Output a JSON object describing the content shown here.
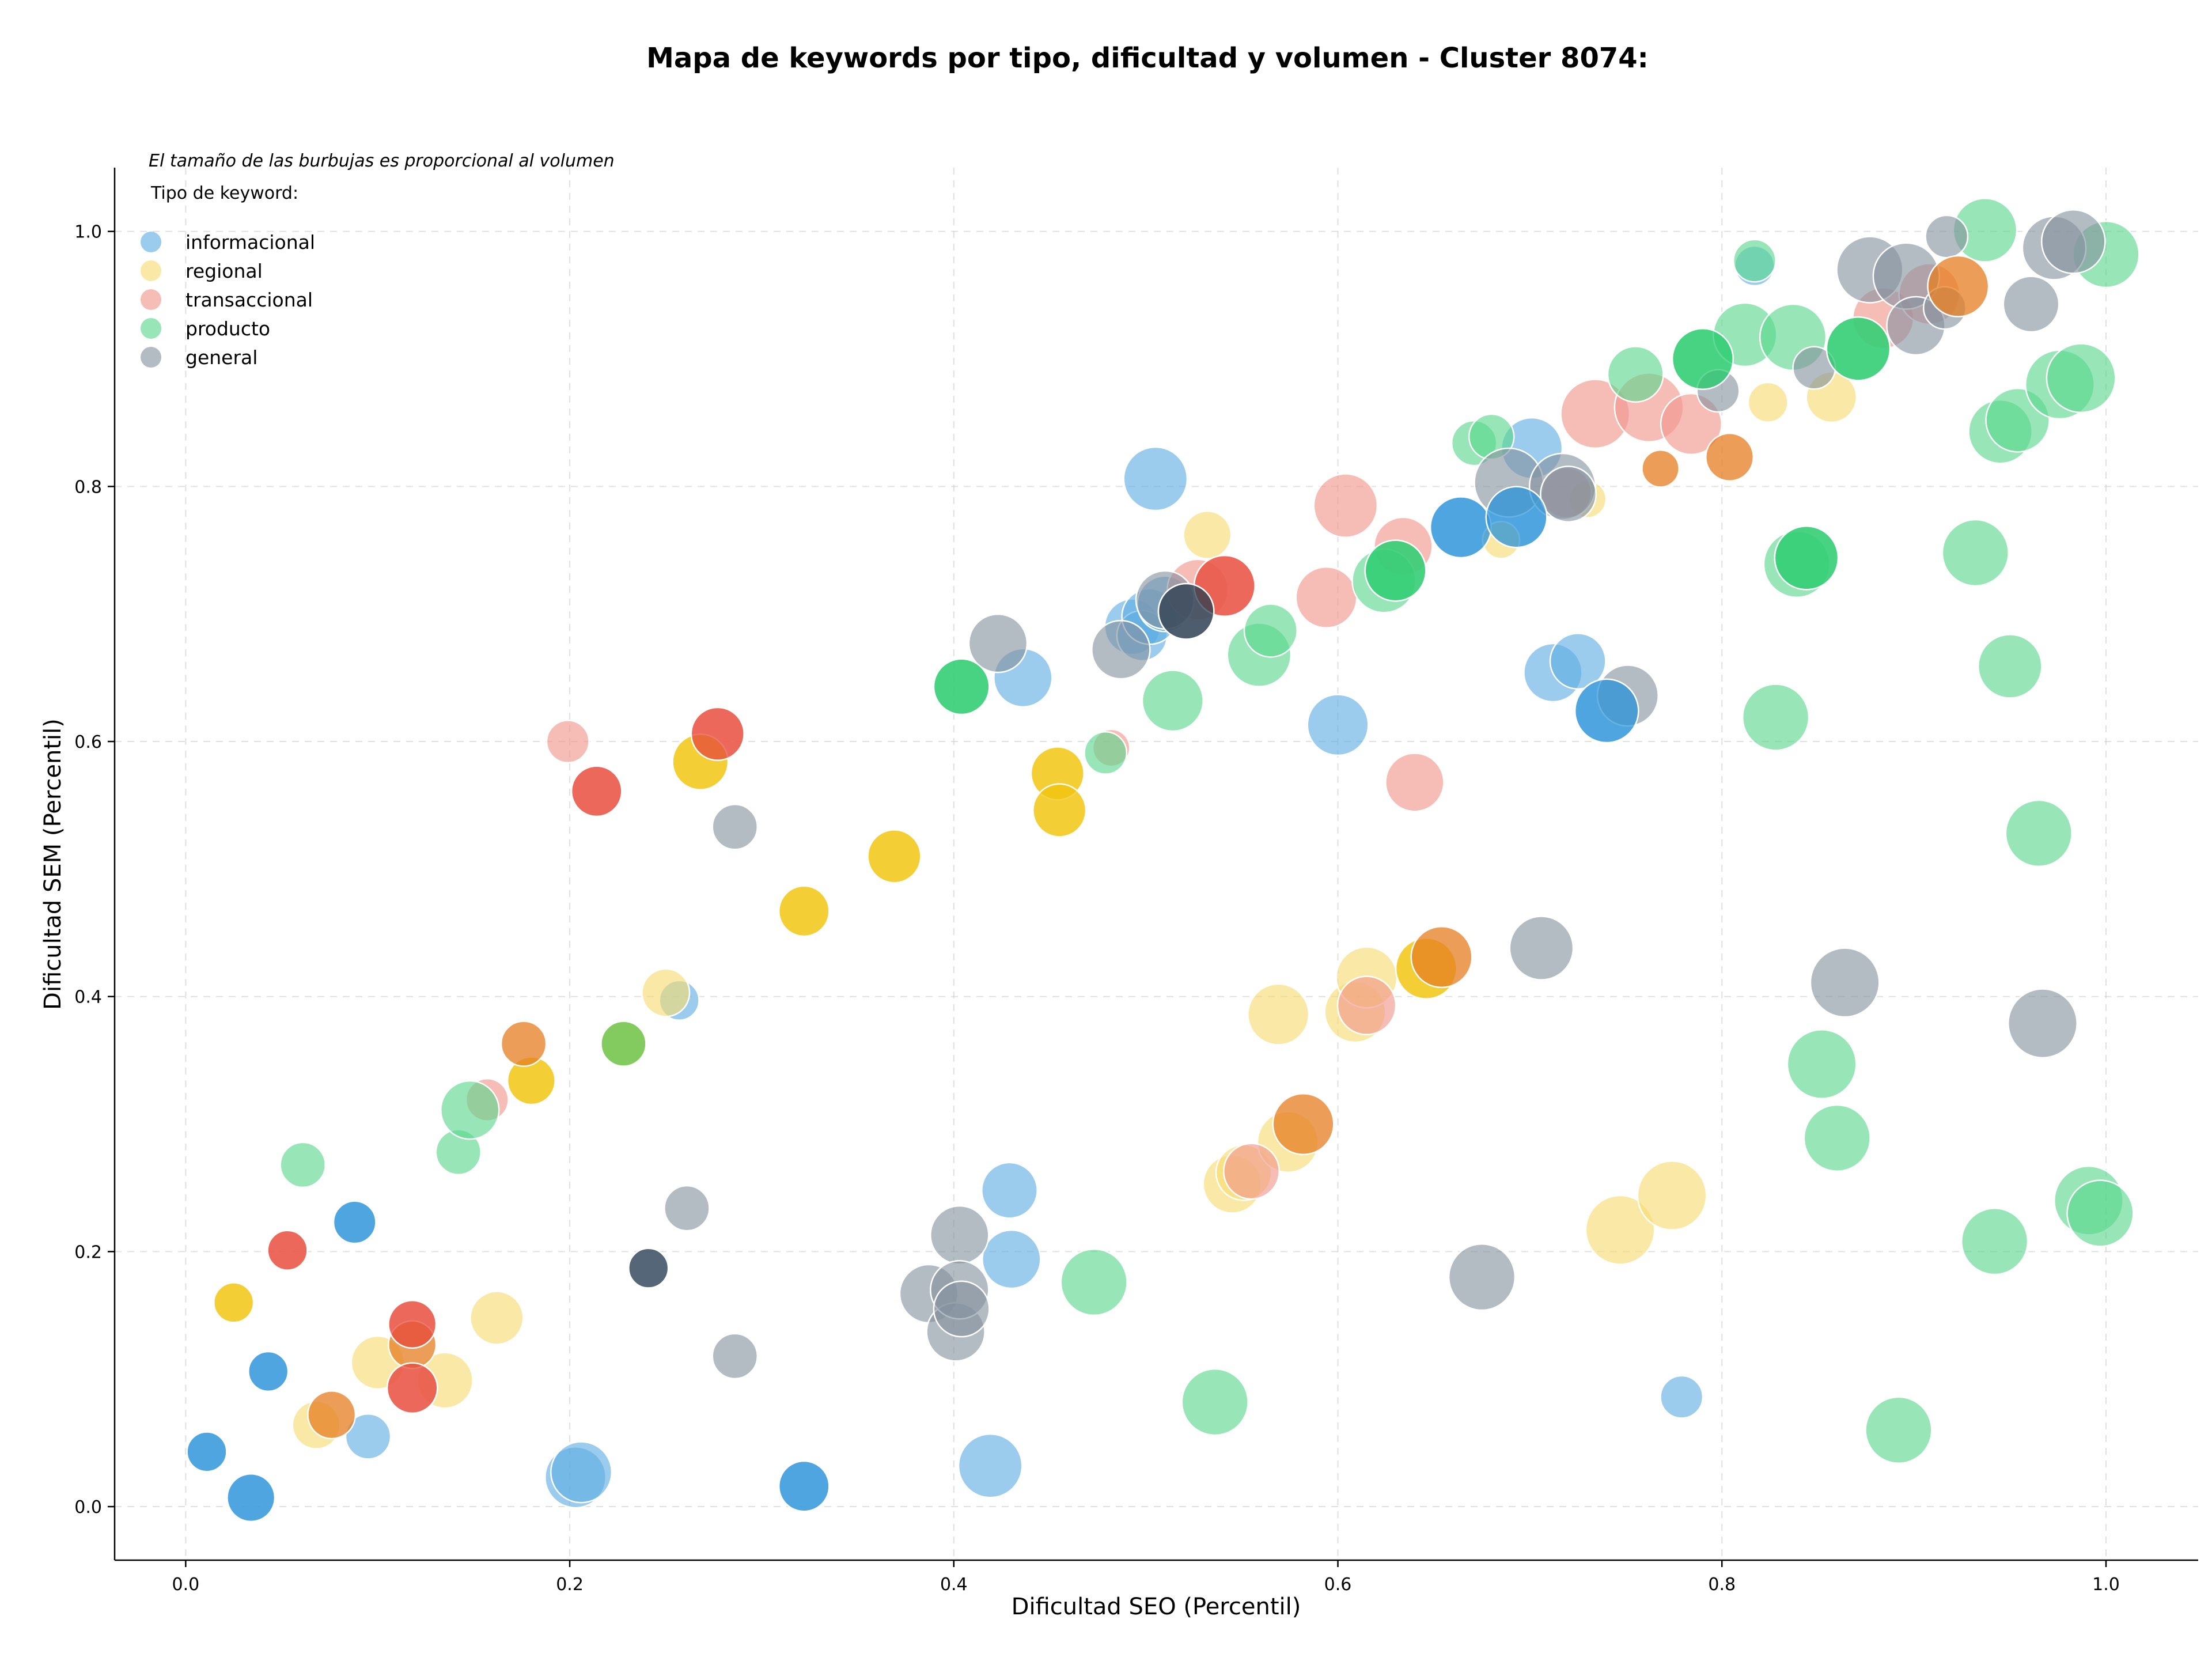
{
  "chart_data": {
    "type": "scatter",
    "title": "Mapa de keywords por tipo, dificultad y volumen - Cluster 8074:",
    "xlabel": "Dificultad SEO (Percentil)",
    "ylabel": "Dificultad SEM (Percentil)",
    "note": "El tamaño de las burbujas es proporcional al volumen",
    "legend_title": "Tipo de keyword:",
    "legend_position": "top-left",
    "grid": true,
    "xlim": [
      -0.037,
      1.048
    ],
    "ylim": [
      -0.042,
      1.05
    ],
    "xticks": [
      0.0,
      0.2,
      0.4,
      0.6,
      0.8,
      1.0
    ],
    "yticks": [
      0.0,
      0.2,
      0.4,
      0.6,
      0.8,
      1.0
    ],
    "xtick_labels": [
      "0.0",
      "0.2",
      "0.4",
      "0.6",
      "0.8",
      "1.0"
    ],
    "ytick_labels": [
      "0.0",
      "0.2",
      "0.4",
      "0.6",
      "0.8",
      "1.0"
    ],
    "series": [
      {
        "name": "informacional",
        "color": "#5dade2",
        "points": [
          {
            "x": 0.011,
            "y": 0.043,
            "s": 0.4
          },
          {
            "x": 0.034,
            "y": 0.007,
            "s": 0.55
          },
          {
            "x": 0.043,
            "y": 0.106,
            "s": 0.4
          },
          {
            "x": 0.088,
            "y": 0.223,
            "s": 0.45
          },
          {
            "x": 0.095,
            "y": 0.055,
            "s": 0.5
          },
          {
            "x": 0.203,
            "y": 0.023,
            "s": 0.8
          },
          {
            "x": 0.206,
            "y": 0.027,
            "s": 0.8
          },
          {
            "x": 0.257,
            "y": 0.397,
            "s": 0.4
          },
          {
            "x": 0.322,
            "y": 0.016,
            "s": 0.6
          },
          {
            "x": 0.419,
            "y": 0.032,
            "s": 0.85
          },
          {
            "x": 0.429,
            "y": 0.248,
            "s": 0.7
          },
          {
            "x": 0.43,
            "y": 0.194,
            "s": 0.75
          },
          {
            "x": 0.436,
            "y": 0.65,
            "s": 0.75
          },
          {
            "x": 0.493,
            "y": 0.69,
            "s": 0.7
          },
          {
            "x": 0.498,
            "y": 0.683,
            "s": 0.6
          },
          {
            "x": 0.502,
            "y": 0.698,
            "s": 0.7
          },
          {
            "x": 0.505,
            "y": 0.806,
            "s": 0.85
          },
          {
            "x": 0.51,
            "y": 0.708,
            "s": 0.7
          },
          {
            "x": 0.6,
            "y": 0.613,
            "s": 0.8
          },
          {
            "x": 0.664,
            "y": 0.768,
            "s": 0.8
          },
          {
            "x": 0.693,
            "y": 0.776,
            "s": 0.8
          },
          {
            "x": 0.701,
            "y": 0.83,
            "s": 0.8
          },
          {
            "x": 0.712,
            "y": 0.654,
            "s": 0.75
          },
          {
            "x": 0.725,
            "y": 0.663,
            "s": 0.7
          },
          {
            "x": 0.74,
            "y": 0.624,
            "s": 0.85
          },
          {
            "x": 0.779,
            "y": 0.086,
            "s": 0.45
          },
          {
            "x": 0.817,
            "y": 0.973,
            "s": 0.4
          }
        ]
      },
      {
        "name": "regional",
        "color": "#f7dc6f",
        "points": [
          {
            "x": 0.025,
            "y": 0.16,
            "s": 0.4
          },
          {
            "x": 0.068,
            "y": 0.064,
            "s": 0.55
          },
          {
            "x": 0.1,
            "y": 0.113,
            "s": 0.65
          },
          {
            "x": 0.135,
            "y": 0.099,
            "s": 0.7
          },
          {
            "x": 0.162,
            "y": 0.148,
            "s": 0.65
          },
          {
            "x": 0.18,
            "y": 0.334,
            "s": 0.55
          },
          {
            "x": 0.25,
            "y": 0.403,
            "s": 0.55
          },
          {
            "x": 0.268,
            "y": 0.584,
            "s": 0.7
          },
          {
            "x": 0.322,
            "y": 0.467,
            "s": 0.6
          },
          {
            "x": 0.369,
            "y": 0.51,
            "s": 0.65
          },
          {
            "x": 0.454,
            "y": 0.575,
            "s": 0.65
          },
          {
            "x": 0.455,
            "y": 0.546,
            "s": 0.65
          },
          {
            "x": 0.532,
            "y": 0.762,
            "s": 0.55
          },
          {
            "x": 0.545,
            "y": 0.253,
            "s": 0.75
          },
          {
            "x": 0.551,
            "y": 0.262,
            "s": 0.7
          },
          {
            "x": 0.569,
            "y": 0.386,
            "s": 0.8
          },
          {
            "x": 0.574,
            "y": 0.286,
            "s": 0.8
          },
          {
            "x": 0.609,
            "y": 0.388,
            "s": 0.8
          },
          {
            "x": 0.615,
            "y": 0.415,
            "s": 0.8
          },
          {
            "x": 0.646,
            "y": 0.422,
            "s": 0.8
          },
          {
            "x": 0.685,
            "y": 0.758,
            "s": 0.35
          },
          {
            "x": 0.73,
            "y": 0.79,
            "s": 0.35
          },
          {
            "x": 0.747,
            "y": 0.217,
            "s": 0.95
          },
          {
            "x": 0.774,
            "y": 0.244,
            "s": 0.95
          },
          {
            "x": 0.824,
            "y": 0.866,
            "s": 0.4
          },
          {
            "x": 0.857,
            "y": 0.87,
            "s": 0.6
          }
        ]
      },
      {
        "name": "transaccional",
        "color": "#f1948a",
        "points": [
          {
            "x": 0.053,
            "y": 0.201,
            "s": 0.4
          },
          {
            "x": 0.118,
            "y": 0.143,
            "s": 0.55
          },
          {
            "x": 0.118,
            "y": 0.093,
            "s": 0.6
          },
          {
            "x": 0.157,
            "y": 0.319,
            "s": 0.45
          },
          {
            "x": 0.199,
            "y": 0.6,
            "s": 0.45
          },
          {
            "x": 0.214,
            "y": 0.561,
            "s": 0.6
          },
          {
            "x": 0.277,
            "y": 0.606,
            "s": 0.65
          },
          {
            "x": 0.482,
            "y": 0.595,
            "s": 0.35
          },
          {
            "x": 0.527,
            "y": 0.719,
            "s": 0.8
          },
          {
            "x": 0.541,
            "y": 0.722,
            "s": 0.8
          },
          {
            "x": 0.555,
            "y": 0.263,
            "s": 0.7
          },
          {
            "x": 0.594,
            "y": 0.713,
            "s": 0.8
          },
          {
            "x": 0.604,
            "y": 0.785,
            "s": 0.85
          },
          {
            "x": 0.615,
            "y": 0.393,
            "s": 0.75
          },
          {
            "x": 0.634,
            "y": 0.753,
            "s": 0.75
          },
          {
            "x": 0.64,
            "y": 0.568,
            "s": 0.75
          },
          {
            "x": 0.719,
            "y": 0.795,
            "s": 0.6
          },
          {
            "x": 0.734,
            "y": 0.857,
            "s": 0.95
          },
          {
            "x": 0.762,
            "y": 0.862,
            "s": 0.95
          },
          {
            "x": 0.784,
            "y": 0.849,
            "s": 0.8
          },
          {
            "x": 0.884,
            "y": 0.932,
            "s": 0.8
          },
          {
            "x": 0.908,
            "y": 0.951,
            "s": 0.8
          }
        ]
      },
      {
        "name": "producto",
        "color": "#58d68d",
        "points": [
          {
            "x": 0.061,
            "y": 0.268,
            "s": 0.5
          },
          {
            "x": 0.142,
            "y": 0.278,
            "s": 0.5
          },
          {
            "x": 0.148,
            "y": 0.311,
            "s": 0.75
          },
          {
            "x": 0.228,
            "y": 0.363,
            "s": 0.5
          },
          {
            "x": 0.404,
            "y": 0.643,
            "s": 0.7
          },
          {
            "x": 0.473,
            "y": 0.176,
            "s": 0.9
          },
          {
            "x": 0.479,
            "y": 0.591,
            "s": 0.45
          },
          {
            "x": 0.514,
            "y": 0.632,
            "s": 0.8
          },
          {
            "x": 0.536,
            "y": 0.082,
            "s": 0.9
          },
          {
            "x": 0.559,
            "y": 0.668,
            "s": 0.85
          },
          {
            "x": 0.565,
            "y": 0.687,
            "s": 0.65
          },
          {
            "x": 0.624,
            "y": 0.726,
            "s": 0.85
          },
          {
            "x": 0.63,
            "y": 0.734,
            "s": 0.8
          },
          {
            "x": 0.671,
            "y": 0.834,
            "s": 0.5
          },
          {
            "x": 0.68,
            "y": 0.839,
            "s": 0.5
          },
          {
            "x": 0.755,
            "y": 0.888,
            "s": 0.7
          },
          {
            "x": 0.79,
            "y": 0.9,
            "s": 0.8
          },
          {
            "x": 0.812,
            "y": 0.919,
            "s": 0.85
          },
          {
            "x": 0.817,
            "y": 0.977,
            "s": 0.45
          },
          {
            "x": 0.828,
            "y": 0.619,
            "s": 0.9
          },
          {
            "x": 0.837,
            "y": 0.917,
            "s": 0.9
          },
          {
            "x": 0.839,
            "y": 0.739,
            "s": 0.9
          },
          {
            "x": 0.844,
            "y": 0.744,
            "s": 0.85
          },
          {
            "x": 0.852,
            "y": 0.347,
            "s": 0.95
          },
          {
            "x": 0.86,
            "y": 0.289,
            "s": 0.9
          },
          {
            "x": 0.871,
            "y": 0.908,
            "s": 0.85
          },
          {
            "x": 0.892,
            "y": 0.06,
            "s": 0.9
          },
          {
            "x": 0.932,
            "y": 0.748,
            "s": 0.9
          },
          {
            "x": 0.937,
            "y": 1.001,
            "s": 0.85
          },
          {
            "x": 0.942,
            "y": 0.208,
            "s": 0.9
          },
          {
            "x": 0.945,
            "y": 0.843,
            "s": 0.85
          },
          {
            "x": 0.95,
            "y": 0.659,
            "s": 0.85
          },
          {
            "x": 0.954,
            "y": 0.852,
            "s": 0.85
          },
          {
            "x": 0.965,
            "y": 0.528,
            "s": 0.9
          },
          {
            "x": 0.976,
            "y": 0.88,
            "s": 0.95
          },
          {
            "x": 0.987,
            "y": 0.885,
            "s": 0.95
          },
          {
            "x": 0.991,
            "y": 0.24,
            "s": 0.95
          },
          {
            "x": 0.997,
            "y": 0.23,
            "s": 0.9
          },
          {
            "x": 1.0,
            "y": 0.982,
            "s": 0.9
          }
        ]
      },
      {
        "name": "general",
        "color": "#85929e",
        "points": [
          {
            "x": 0.241,
            "y": 0.187,
            "s": 0.4
          },
          {
            "x": 0.261,
            "y": 0.234,
            "s": 0.5
          },
          {
            "x": 0.286,
            "y": 0.533,
            "s": 0.5
          },
          {
            "x": 0.286,
            "y": 0.118,
            "s": 0.5
          },
          {
            "x": 0.387,
            "y": 0.167,
            "s": 0.75
          },
          {
            "x": 0.401,
            "y": 0.137,
            "s": 0.75
          },
          {
            "x": 0.403,
            "y": 0.213,
            "s": 0.75
          },
          {
            "x": 0.403,
            "y": 0.17,
            "s": 0.75
          },
          {
            "x": 0.404,
            "y": 0.155,
            "s": 0.7
          },
          {
            "x": 0.423,
            "y": 0.677,
            "s": 0.75
          },
          {
            "x": 0.487,
            "y": 0.672,
            "s": 0.75
          },
          {
            "x": 0.51,
            "y": 0.711,
            "s": 0.75
          },
          {
            "x": 0.521,
            "y": 0.702,
            "s": 0.7
          },
          {
            "x": 0.675,
            "y": 0.18,
            "s": 0.9
          },
          {
            "x": 0.689,
            "y": 0.803,
            "s": 0.95
          },
          {
            "x": 0.706,
            "y": 0.438,
            "s": 0.85
          },
          {
            "x": 0.717,
            "y": 0.8,
            "s": 0.9
          },
          {
            "x": 0.72,
            "y": 0.794,
            "s": 0.7
          },
          {
            "x": 0.751,
            "y": 0.636,
            "s": 0.8
          },
          {
            "x": 0.798,
            "y": 0.875,
            "s": 0.45
          },
          {
            "x": 0.848,
            "y": 0.893,
            "s": 0.45
          },
          {
            "x": 0.864,
            "y": 0.411,
            "s": 0.95
          },
          {
            "x": 0.877,
            "y": 0.97,
            "s": 0.9
          },
          {
            "x": 0.896,
            "y": 0.965,
            "s": 0.9
          },
          {
            "x": 0.901,
            "y": 0.926,
            "s": 0.75
          },
          {
            "x": 0.916,
            "y": 0.94,
            "s": 0.45
          },
          {
            "x": 0.917,
            "y": 0.996,
            "s": 0.45
          },
          {
            "x": 0.961,
            "y": 0.943,
            "s": 0.7
          },
          {
            "x": 0.967,
            "y": 0.379,
            "s": 0.95
          },
          {
            "x": 0.973,
            "y": 0.987,
            "s": 0.85
          },
          {
            "x": 0.983,
            "y": 0.992,
            "s": 0.85
          }
        ]
      }
    ],
    "overlay_points": [
      {
        "x": 0.011,
        "y": 0.043,
        "s": 0.4,
        "color": "#3498db"
      },
      {
        "x": 0.034,
        "y": 0.007,
        "s": 0.55,
        "color": "#3498db"
      },
      {
        "x": 0.043,
        "y": 0.106,
        "s": 0.4,
        "color": "#3498db"
      },
      {
        "x": 0.088,
        "y": 0.223,
        "s": 0.45,
        "color": "#3498db"
      },
      {
        "x": 0.322,
        "y": 0.016,
        "s": 0.6,
        "color": "#3498db"
      },
      {
        "x": 0.664,
        "y": 0.768,
        "s": 0.8,
        "color": "#3498db"
      },
      {
        "x": 0.693,
        "y": 0.776,
        "s": 0.8,
        "color": "#3498db"
      },
      {
        "x": 0.74,
        "y": 0.624,
        "s": 0.85,
        "color": "#3498db"
      },
      {
        "x": 0.025,
        "y": 0.16,
        "s": 0.4,
        "color": "#f1c40f"
      },
      {
        "x": 0.18,
        "y": 0.334,
        "s": 0.55,
        "color": "#f1c40f"
      },
      {
        "x": 0.268,
        "y": 0.584,
        "s": 0.7,
        "color": "#f1c40f"
      },
      {
        "x": 0.322,
        "y": 0.467,
        "s": 0.6,
        "color": "#f1c40f"
      },
      {
        "x": 0.369,
        "y": 0.51,
        "s": 0.65,
        "color": "#f1c40f"
      },
      {
        "x": 0.454,
        "y": 0.575,
        "s": 0.65,
        "color": "#f1c40f"
      },
      {
        "x": 0.455,
        "y": 0.546,
        "s": 0.65,
        "color": "#f1c40f"
      },
      {
        "x": 0.646,
        "y": 0.422,
        "s": 0.8,
        "color": "#f1c40f"
      },
      {
        "x": 0.076,
        "y": 0.072,
        "s": 0.55,
        "color": "#e67e22"
      },
      {
        "x": 0.118,
        "y": 0.127,
        "s": 0.55,
        "color": "#e67e22"
      },
      {
        "x": 0.176,
        "y": 0.363,
        "s": 0.5,
        "color": "#e67e22"
      },
      {
        "x": 0.582,
        "y": 0.3,
        "s": 0.8,
        "color": "#e67e22"
      },
      {
        "x": 0.654,
        "y": 0.431,
        "s": 0.8,
        "color": "#e67e22"
      },
      {
        "x": 0.768,
        "y": 0.814,
        "s": 0.35,
        "color": "#e67e22"
      },
      {
        "x": 0.804,
        "y": 0.823,
        "s": 0.55,
        "color": "#e67e22"
      },
      {
        "x": 0.923,
        "y": 0.957,
        "s": 0.8,
        "color": "#e67e22"
      },
      {
        "x": 0.053,
        "y": 0.201,
        "s": 0.4,
        "color": "#e74c3c"
      },
      {
        "x": 0.118,
        "y": 0.143,
        "s": 0.55,
        "color": "#e74c3c"
      },
      {
        "x": 0.118,
        "y": 0.093,
        "s": 0.6,
        "color": "#e74c3c"
      },
      {
        "x": 0.214,
        "y": 0.561,
        "s": 0.6,
        "color": "#e74c3c"
      },
      {
        "x": 0.277,
        "y": 0.606,
        "s": 0.65,
        "color": "#e74c3c"
      },
      {
        "x": 0.541,
        "y": 0.722,
        "s": 0.8,
        "color": "#e74c3c"
      },
      {
        "x": 0.404,
        "y": 0.643,
        "s": 0.7,
        "color": "#2ecc71"
      },
      {
        "x": 0.63,
        "y": 0.734,
        "s": 0.8,
        "color": "#2ecc71"
      },
      {
        "x": 0.79,
        "y": 0.9,
        "s": 0.8,
        "color": "#2ecc71"
      },
      {
        "x": 0.871,
        "y": 0.908,
        "s": 0.85,
        "color": "#2ecc71"
      },
      {
        "x": 0.844,
        "y": 0.744,
        "s": 0.85,
        "color": "#2ecc71"
      },
      {
        "x": 0.228,
        "y": 0.363,
        "s": 0.5,
        "color": "#7dc242"
      },
      {
        "x": 0.241,
        "y": 0.187,
        "s": 0.4,
        "color": "#34495e"
      },
      {
        "x": 0.521,
        "y": 0.702,
        "s": 0.7,
        "color": "#2c3e50"
      }
    ]
  }
}
